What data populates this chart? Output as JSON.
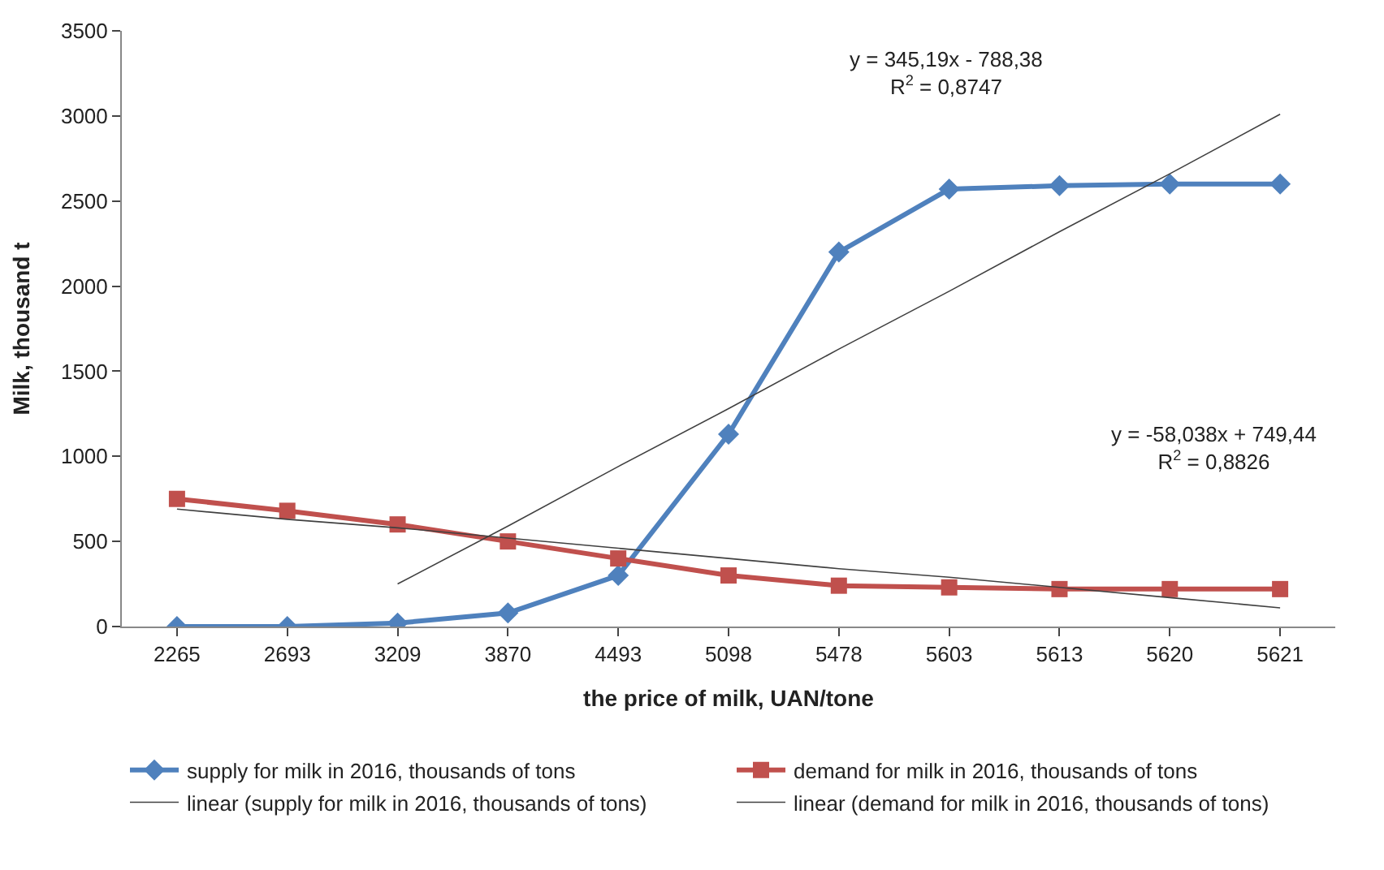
{
  "chart_data": {
    "type": "line",
    "xlabel": "the price of milk, UAN/tone",
    "ylabel": "Milk, thousand t",
    "categories": [
      "2265",
      "2693",
      "3209",
      "3870",
      "4493",
      "5098",
      "5478",
      "5603",
      "5613",
      "5620",
      "5621"
    ],
    "series": [
      {
        "name": "supply for milk in 2016, thousands of tons",
        "color": "#4f81bd",
        "marker": "diamond",
        "values": [
          0,
          0,
          20,
          80,
          300,
          1130,
          2200,
          2570,
          2590,
          2600,
          2600
        ]
      },
      {
        "name": "demand for milk in 2016, thousands of tons",
        "color": "#c0504d",
        "marker": "square",
        "values": [
          750,
          680,
          600,
          500,
          400,
          300,
          240,
          230,
          220,
          220,
          220
        ]
      },
      {
        "name": "linear (supply for milk in 2016, thousands of tons)",
        "color": "#404040",
        "marker": "none",
        "values": [
          null,
          null,
          250,
          590,
          940,
          1280,
          1630,
          1970,
          2320,
          2660,
          3010
        ]
      },
      {
        "name": "linear (demand for milk in 2016, thousands of tons)",
        "color": "#404040",
        "marker": "none",
        "values": [
          690,
          630,
          580,
          520,
          460,
          400,
          340,
          290,
          230,
          170,
          110
        ]
      }
    ],
    "ylim": [
      0,
      3500
    ],
    "yticks": [
      0,
      500,
      1000,
      1500,
      2000,
      2500,
      3000,
      3500
    ],
    "annotations": [
      "y = 345,19x - 788,38\nR$^{2}$ = 0,8747",
      "y = -58,038x + 749,44\nR$^{2}$ = 0,8826"
    ],
    "legend": "bottom"
  }
}
